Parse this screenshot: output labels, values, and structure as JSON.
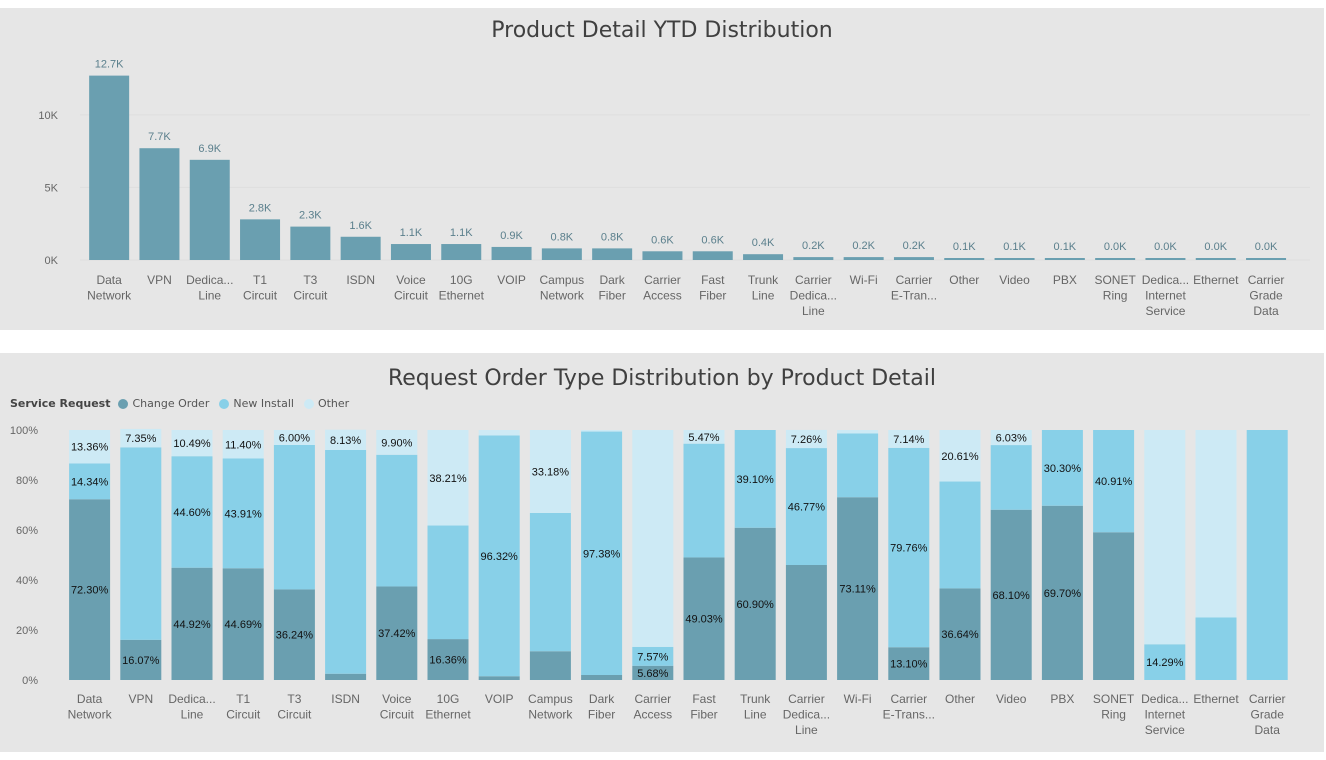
{
  "colors": {
    "bar1": "#6a9fb0",
    "change_order": "#6a9fb0",
    "new_install": "#88d0e8",
    "other": "#cdeaf5",
    "axis_text": "#666666",
    "label_text": "#5a7f8c"
  },
  "chart_data": [
    {
      "type": "bar",
      "title": "Product Detail YTD Distribution",
      "categories": [
        [
          "Data",
          "Network"
        ],
        [
          "VPN"
        ],
        [
          "Dedica...",
          "Line"
        ],
        [
          "T1",
          "Circuit"
        ],
        [
          "T3",
          "Circuit"
        ],
        [
          "ISDN"
        ],
        [
          "Voice",
          "Circuit"
        ],
        [
          "10G",
          "Ethernet"
        ],
        [
          "VOIP"
        ],
        [
          "Campus",
          "Network"
        ],
        [
          "Dark",
          "Fiber"
        ],
        [
          "Carrier",
          "Access"
        ],
        [
          "Fast",
          "Fiber"
        ],
        [
          "Trunk",
          "Line"
        ],
        [
          "Carrier",
          "Dedica...",
          "Line"
        ],
        [
          "Wi-Fi"
        ],
        [
          "Carrier",
          "E-Tran..."
        ],
        [
          "Other"
        ],
        [
          "Video"
        ],
        [
          "PBX"
        ],
        [
          "SONET",
          "Ring"
        ],
        [
          "Dedica...",
          "Internet",
          "Service"
        ],
        [
          "Ethernet"
        ],
        [
          "Carrier",
          "Grade",
          "Data"
        ]
      ],
      "values": [
        12700,
        7700,
        6900,
        2800,
        2300,
        1600,
        1100,
        1100,
        900,
        800,
        800,
        600,
        600,
        400,
        200,
        200,
        200,
        100,
        100,
        100,
        0,
        0,
        0,
        0
      ],
      "data_labels": [
        "12.7K",
        "7.7K",
        "6.9K",
        "2.8K",
        "2.3K",
        "1.6K",
        "1.1K",
        "1.1K",
        "0.9K",
        "0.8K",
        "0.8K",
        "0.6K",
        "0.6K",
        "0.4K",
        "0.2K",
        "0.2K",
        "0.2K",
        "0.1K",
        "0.1K",
        "0.1K",
        "0.0K",
        "0.0K",
        "0.0K",
        "0.0K"
      ],
      "yticks": [
        0,
        5000,
        10000
      ],
      "ytick_labels": [
        "0K",
        "5K",
        "10K"
      ],
      "ylim": [
        0,
        13500
      ]
    },
    {
      "type": "bar",
      "stacked": true,
      "title": "Request Order Type Distribution by Product Detail",
      "legend": {
        "title": "Service Request",
        "position": "top-left",
        "items": [
          "Change Order",
          "New Install",
          "Other"
        ]
      },
      "categories": [
        [
          "Data",
          "Network"
        ],
        [
          "VPN"
        ],
        [
          "Dedica...",
          "Line"
        ],
        [
          "T1",
          "Circuit"
        ],
        [
          "T3",
          "Circuit"
        ],
        [
          "ISDN"
        ],
        [
          "Voice",
          "Circuit"
        ],
        [
          "10G",
          "Ethernet"
        ],
        [
          "VOIP"
        ],
        [
          "Campus",
          "Network"
        ],
        [
          "Dark",
          "Fiber"
        ],
        [
          "Carrier",
          "Access"
        ],
        [
          "Fast",
          "Fiber"
        ],
        [
          "Trunk",
          "Line"
        ],
        [
          "Carrier",
          "Dedica...",
          "Line"
        ],
        [
          "Wi-Fi"
        ],
        [
          "Carrier",
          "E-Trans..."
        ],
        [
          "Other"
        ],
        [
          "Video"
        ],
        [
          "PBX"
        ],
        [
          "SONET",
          "Ring"
        ],
        [
          "Dedica...",
          "Internet",
          "Service"
        ],
        [
          "Ethernet"
        ],
        [
          "Carrier",
          "Grade",
          "Data"
        ]
      ],
      "series": [
        {
          "name": "Change Order",
          "values": [
            72.3,
            16.07,
            44.92,
            44.69,
            36.24,
            2.5,
            37.42,
            16.36,
            1.5,
            11.5,
            2.0,
            5.68,
            49.03,
            60.9,
            46.0,
            73.11,
            13.1,
            36.64,
            68.1,
            69.7,
            59.09,
            0,
            0,
            0
          ],
          "labels": [
            "72.30%",
            "16.07%",
            "44.92%",
            "44.69%",
            "36.24%",
            "",
            "37.42%",
            "16.36%",
            "",
            "",
            "",
            "5.68%",
            "49.03%",
            "60.90%",
            "",
            "73.11%",
            "13.10%",
            "36.64%",
            "68.10%",
            "69.70%",
            "",
            "",
            "",
            ""
          ]
        },
        {
          "name": "New Install",
          "values": [
            14.34,
            77.0,
            44.6,
            43.91,
            57.76,
            89.5,
            52.68,
            45.43,
            96.32,
            55.32,
            97.38,
            7.57,
            45.5,
            39.1,
            46.77,
            25.5,
            79.76,
            42.75,
            25.87,
            30.3,
            40.91,
            14.29,
            25.0,
            100.0
          ],
          "labels": [
            "14.34%",
            "",
            "44.60%",
            "43.91%",
            "",
            "",
            "",
            "",
            "96.32%",
            "",
            "97.38%",
            "7.57%",
            "",
            "39.10%",
            "46.77%",
            "",
            "79.76%",
            "",
            "",
            "30.30%",
            "40.91%",
            "14.29%",
            "",
            ""
          ]
        },
        {
          "name": "Other",
          "values": [
            13.36,
            7.35,
            10.49,
            11.4,
            6.0,
            8.13,
            9.9,
            38.21,
            2.18,
            33.18,
            0.62,
            86.75,
            5.47,
            0,
            7.26,
            1.39,
            7.14,
            20.61,
            6.03,
            0,
            0,
            85.71,
            75.0,
            0
          ],
          "labels": [
            "13.36%",
            "7.35%",
            "10.49%",
            "11.40%",
            "6.00%",
            "8.13%",
            "9.90%",
            "38.21%",
            "",
            "33.18%",
            "",
            "",
            "5.47%",
            "",
            "7.26%",
            "",
            "7.14%",
            "20.61%",
            "6.03%",
            "",
            "",
            "",
            "",
            ""
          ]
        }
      ],
      "yticks": [
        0,
        20,
        40,
        60,
        80,
        100
      ],
      "ytick_labels": [
        "0%",
        "20%",
        "40%",
        "60%",
        "80%",
        "100%"
      ],
      "ylim": [
        0,
        100
      ]
    }
  ]
}
